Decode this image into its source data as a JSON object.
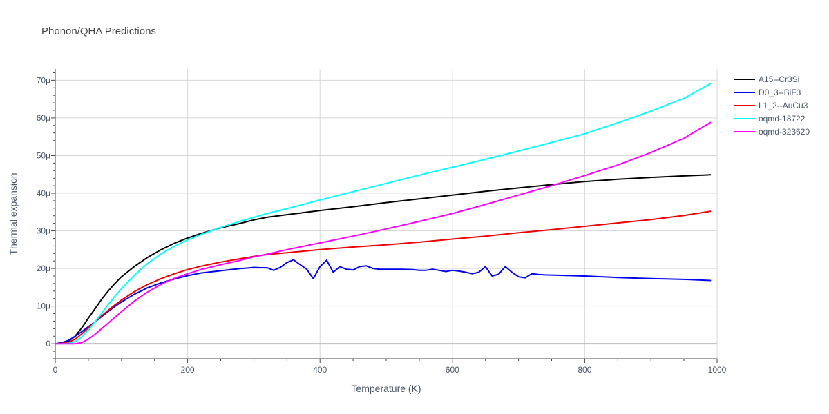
{
  "chart_data": {
    "type": "line",
    "title": "Phonon/QHA Predictions",
    "xlabel": "Temperature (K)",
    "ylabel": "Thermal expansion",
    "xlim": [
      0,
      1000
    ],
    "ylim": [
      -4,
      73
    ],
    "x_ticks": [
      0,
      200,
      400,
      600,
      800,
      1000
    ],
    "x_tick_labels": [
      "0",
      "200",
      "400",
      "600",
      "800",
      "1000"
    ],
    "y_ticks": [
      0,
      10,
      20,
      30,
      40,
      50,
      60,
      70
    ],
    "y_tick_labels": [
      "0",
      "10μ",
      "20μ",
      "30μ",
      "40μ",
      "50μ",
      "60μ",
      "70μ"
    ],
    "grid": true,
    "legend_position": "right",
    "series": [
      {
        "name": "A15--Cr3Si",
        "color": "#000000",
        "points": [
          [
            0,
            0
          ],
          [
            10,
            0.2
          ],
          [
            20,
            0.7
          ],
          [
            30,
            2.0
          ],
          [
            40,
            4.2
          ],
          [
            50,
            6.8
          ],
          [
            60,
            9.3
          ],
          [
            70,
            11.8
          ],
          [
            80,
            14.0
          ],
          [
            90,
            16.0
          ],
          [
            100,
            17.8
          ],
          [
            120,
            20.6
          ],
          [
            140,
            23.0
          ],
          [
            160,
            25.0
          ],
          [
            180,
            26.7
          ],
          [
            200,
            28.1
          ],
          [
            220,
            29.3
          ],
          [
            250,
            30.8
          ],
          [
            280,
            32.0
          ],
          [
            300,
            32.9
          ],
          [
            320,
            33.6
          ],
          [
            350,
            34.3
          ],
          [
            400,
            35.4
          ],
          [
            450,
            36.4
          ],
          [
            500,
            37.5
          ],
          [
            550,
            38.5
          ],
          [
            600,
            39.5
          ],
          [
            650,
            40.5
          ],
          [
            700,
            41.4
          ],
          [
            750,
            42.3
          ],
          [
            800,
            43.1
          ],
          [
            850,
            43.7
          ],
          [
            900,
            44.2
          ],
          [
            950,
            44.6
          ],
          [
            990,
            44.9
          ]
        ]
      },
      {
        "name": "D0_3--BiF3",
        "color": "#0000ee",
        "points": [
          [
            0,
            0
          ],
          [
            10,
            0.3
          ],
          [
            20,
            0.9
          ],
          [
            30,
            2.0
          ],
          [
            40,
            3.2
          ],
          [
            50,
            4.5
          ],
          [
            60,
            5.8
          ],
          [
            70,
            7.2
          ],
          [
            80,
            8.6
          ],
          [
            90,
            9.9
          ],
          [
            100,
            11.1
          ],
          [
            120,
            13.2
          ],
          [
            140,
            14.9
          ],
          [
            160,
            16.2
          ],
          [
            180,
            17.2
          ],
          [
            200,
            18.1
          ],
          [
            220,
            18.8
          ],
          [
            250,
            19.4
          ],
          [
            280,
            20.0
          ],
          [
            290,
            20.1
          ],
          [
            300,
            20.3
          ],
          [
            310,
            20.2
          ],
          [
            320,
            20.2
          ],
          [
            330,
            19.5
          ],
          [
            340,
            20.3
          ],
          [
            350,
            21.6
          ],
          [
            360,
            22.3
          ],
          [
            370,
            21.0
          ],
          [
            380,
            19.8
          ],
          [
            390,
            17.3
          ],
          [
            400,
            20.5
          ],
          [
            410,
            22.2
          ],
          [
            420,
            19.0
          ],
          [
            430,
            20.5
          ],
          [
            440,
            19.8
          ],
          [
            450,
            19.6
          ],
          [
            460,
            20.5
          ],
          [
            470,
            20.7
          ],
          [
            480,
            20.0
          ],
          [
            490,
            19.8
          ],
          [
            500,
            19.8
          ],
          [
            520,
            19.8
          ],
          [
            540,
            19.7
          ],
          [
            550,
            19.5
          ],
          [
            560,
            19.5
          ],
          [
            570,
            19.8
          ],
          [
            580,
            19.5
          ],
          [
            590,
            19.2
          ],
          [
            600,
            19.5
          ],
          [
            610,
            19.3
          ],
          [
            620,
            19.0
          ],
          [
            630,
            18.6
          ],
          [
            640,
            19.0
          ],
          [
            650,
            20.5
          ],
          [
            660,
            18.0
          ],
          [
            670,
            18.5
          ],
          [
            680,
            20.5
          ],
          [
            690,
            19.0
          ],
          [
            700,
            17.8
          ],
          [
            710,
            17.5
          ],
          [
            720,
            18.6
          ],
          [
            730,
            18.4
          ],
          [
            740,
            18.3
          ],
          [
            760,
            18.2
          ],
          [
            800,
            18.0
          ],
          [
            850,
            17.6
          ],
          [
            900,
            17.3
          ],
          [
            950,
            17.1
          ],
          [
            990,
            16.8
          ]
        ]
      },
      {
        "name": "L1_2--AuCu3",
        "color": "#ee0000",
        "points": [
          [
            0,
            0
          ],
          [
            10,
            0.1
          ],
          [
            20,
            0.4
          ],
          [
            30,
            1.2
          ],
          [
            40,
            2.6
          ],
          [
            50,
            4.2
          ],
          [
            60,
            5.8
          ],
          [
            70,
            7.4
          ],
          [
            80,
            8.9
          ],
          [
            90,
            10.3
          ],
          [
            100,
            11.6
          ],
          [
            120,
            13.9
          ],
          [
            140,
            15.8
          ],
          [
            160,
            17.3
          ],
          [
            180,
            18.6
          ],
          [
            200,
            19.7
          ],
          [
            220,
            20.6
          ],
          [
            250,
            21.7
          ],
          [
            280,
            22.6
          ],
          [
            300,
            23.2
          ],
          [
            320,
            23.7
          ],
          [
            350,
            24.2
          ],
          [
            400,
            25.0
          ],
          [
            450,
            25.7
          ],
          [
            500,
            26.3
          ],
          [
            550,
            27.0
          ],
          [
            600,
            27.8
          ],
          [
            650,
            28.6
          ],
          [
            700,
            29.5
          ],
          [
            750,
            30.3
          ],
          [
            800,
            31.2
          ],
          [
            850,
            32.1
          ],
          [
            900,
            33.0
          ],
          [
            950,
            34.1
          ],
          [
            990,
            35.2
          ]
        ]
      },
      {
        "name": "oqmd-18722",
        "color": "#00ffff",
        "points": [
          [
            0,
            0
          ],
          [
            10,
            0
          ],
          [
            20,
            0.1
          ],
          [
            30,
            0.6
          ],
          [
            40,
            1.8
          ],
          [
            50,
            3.6
          ],
          [
            60,
            5.8
          ],
          [
            70,
            8.1
          ],
          [
            80,
            10.4
          ],
          [
            90,
            12.6
          ],
          [
            100,
            14.6
          ],
          [
            120,
            18.3
          ],
          [
            140,
            21.4
          ],
          [
            160,
            23.9
          ],
          [
            180,
            25.9
          ],
          [
            200,
            27.6
          ],
          [
            220,
            29.0
          ],
          [
            250,
            30.9
          ],
          [
            280,
            32.6
          ],
          [
            300,
            33.6
          ],
          [
            320,
            34.6
          ],
          [
            350,
            35.9
          ],
          [
            400,
            38.2
          ],
          [
            450,
            40.4
          ],
          [
            500,
            42.6
          ],
          [
            550,
            44.8
          ],
          [
            600,
            46.9
          ],
          [
            650,
            49.0
          ],
          [
            700,
            51.2
          ],
          [
            750,
            53.5
          ],
          [
            800,
            55.8
          ],
          [
            850,
            58.7
          ],
          [
            900,
            61.8
          ],
          [
            950,
            65.2
          ],
          [
            990,
            69.1
          ]
        ]
      },
      {
        "name": "oqmd-323620",
        "color": "#ff00ff",
        "points": [
          [
            0,
            0
          ],
          [
            10,
            0
          ],
          [
            20,
            0
          ],
          [
            30,
            0
          ],
          [
            40,
            0.3
          ],
          [
            50,
            1.2
          ],
          [
            60,
            2.5
          ],
          [
            70,
            4.0
          ],
          [
            80,
            5.5
          ],
          [
            90,
            7.0
          ],
          [
            100,
            8.5
          ],
          [
            120,
            11.4
          ],
          [
            140,
            13.8
          ],
          [
            160,
            15.8
          ],
          [
            180,
            17.4
          ],
          [
            200,
            18.6
          ],
          [
            220,
            19.7
          ],
          [
            250,
            21.0
          ],
          [
            280,
            22.2
          ],
          [
            300,
            23.1
          ],
          [
            320,
            23.8
          ],
          [
            350,
            25.0
          ],
          [
            400,
            26.8
          ],
          [
            450,
            28.6
          ],
          [
            500,
            30.5
          ],
          [
            550,
            32.5
          ],
          [
            600,
            34.6
          ],
          [
            650,
            37.0
          ],
          [
            700,
            39.5
          ],
          [
            750,
            42.0
          ],
          [
            800,
            44.7
          ],
          [
            850,
            47.5
          ],
          [
            900,
            50.8
          ],
          [
            950,
            54.6
          ],
          [
            990,
            58.8
          ]
        ]
      }
    ]
  }
}
